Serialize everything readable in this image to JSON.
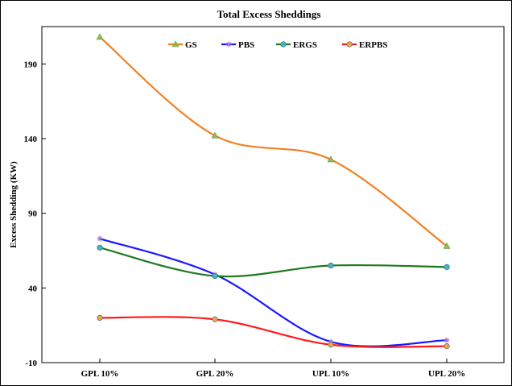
{
  "chart_data": {
    "type": "line",
    "title": "Total Excess Sheddings",
    "xlabel": "",
    "ylabel": "Excess Shedding (KW)",
    "categories": [
      "GPL 10%",
      "GPL 20%",
      "UPL 10%",
      "UPL 20%"
    ],
    "ylim": [
      -10,
      215
    ],
    "yticks": [
      -10,
      40,
      90,
      140,
      190
    ],
    "grid": false,
    "legend_position": "top",
    "series": [
      {
        "name": "GS",
        "values": [
          208,
          142,
          126,
          68
        ],
        "color": "#f28022",
        "marker": "triangle",
        "marker_color": "#8fbc5a"
      },
      {
        "name": "PBS",
        "values": [
          73,
          49,
          4,
          5
        ],
        "color": "#1a1aff",
        "marker": "star",
        "marker_color": "#a070d0"
      },
      {
        "name": "ERGS",
        "values": [
          67,
          48,
          55,
          54
        ],
        "color": "#1f7a1f",
        "marker": "circle",
        "marker_color": "#4bb0c8"
      },
      {
        "name": "ERPBS",
        "values": [
          20,
          19,
          2,
          1
        ],
        "color": "#ff1a1a",
        "marker": "circle",
        "marker_color": "#f5a04a"
      }
    ]
  }
}
